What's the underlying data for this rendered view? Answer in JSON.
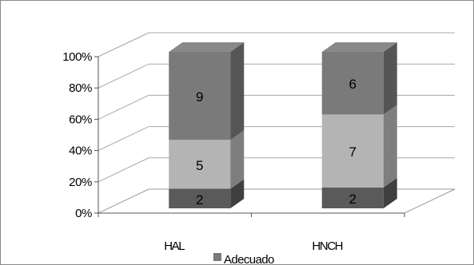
{
  "chart_data": {
    "type": "bar",
    "stacked": "percent",
    "three_d": true,
    "categories": [
      "HAL",
      "HNCH"
    ],
    "series": [
      {
        "values": [
          2,
          2
        ],
        "data_labels": [
          "2",
          "2"
        ],
        "color": "#5a5a5a"
      },
      {
        "values": [
          5,
          7
        ],
        "data_labels": [
          "5",
          "7"
        ],
        "color": "#b4b4b4"
      },
      {
        "values": [
          9,
          6
        ],
        "data_labels": [
          "9",
          "6"
        ],
        "color": "#7a7a7a"
      }
    ],
    "y_ticks": [
      "0%",
      "20%",
      "40%",
      "60%",
      "80%",
      "100%"
    ],
    "ylim": [
      0,
      100
    ],
    "grid": true,
    "legend": {
      "position": "bottom",
      "visible_entries": [
        "Adecuado"
      ]
    }
  }
}
